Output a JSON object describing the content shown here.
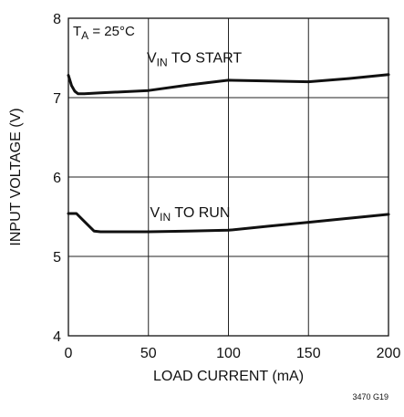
{
  "chart_data": {
    "type": "line",
    "xlabel": "LOAD CURRENT (mA)",
    "ylabel": "INPUT VOLTAGE (V)",
    "xlim": [
      0,
      200
    ],
    "ylim": [
      4,
      8
    ],
    "x_ticks": [
      0,
      50,
      100,
      150,
      200
    ],
    "y_ticks": [
      4,
      5,
      6,
      7,
      8
    ],
    "grid": true,
    "annotation": {
      "main": "T",
      "sub": "A",
      "rest": " = 25°C"
    },
    "figure_id": "3470 G19",
    "series": [
      {
        "name": {
          "pre": "V",
          "sub": "IN",
          "post": " TO START"
        },
        "x": [
          0,
          2,
          4,
          6,
          10,
          20,
          50,
          75,
          100,
          125,
          150,
          175,
          200
        ],
        "y": [
          7.28,
          7.15,
          7.08,
          7.05,
          7.05,
          7.06,
          7.09,
          7.16,
          7.22,
          7.21,
          7.2,
          7.24,
          7.29
        ]
      },
      {
        "name": {
          "pre": "V",
          "sub": "IN",
          "post": " TO RUN"
        },
        "x": [
          0,
          5,
          10,
          16,
          20,
          50,
          75,
          100,
          125,
          150,
          175,
          200
        ],
        "y": [
          5.54,
          5.54,
          5.44,
          5.32,
          5.31,
          5.31,
          5.32,
          5.33,
          5.38,
          5.43,
          5.48,
          5.53
        ]
      }
    ]
  }
}
